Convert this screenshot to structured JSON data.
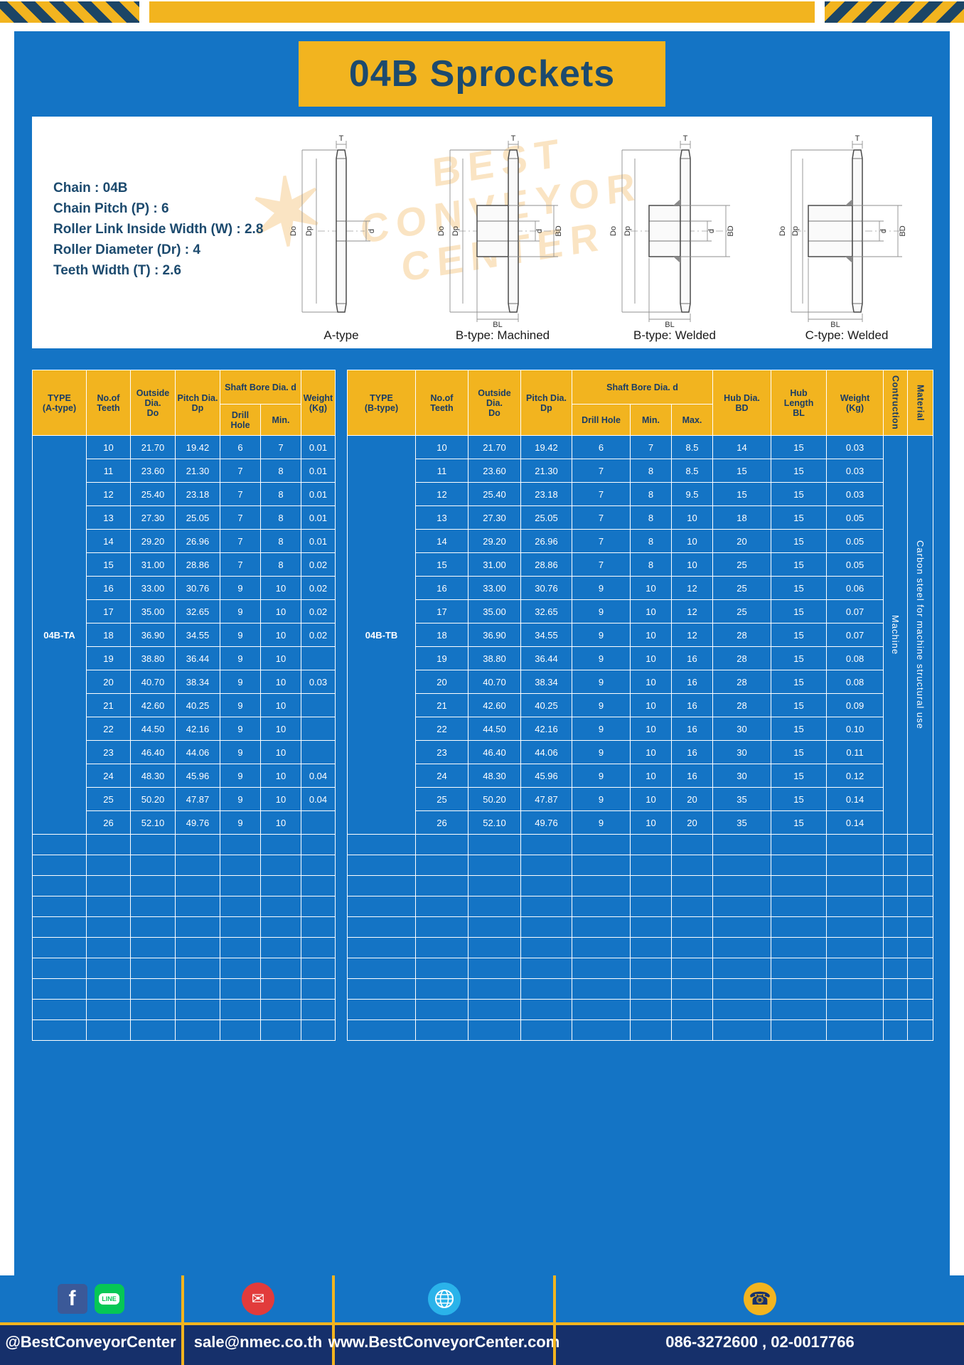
{
  "page": {
    "title": "04B Sprockets"
  },
  "colors": {
    "panel_blue": "#1474c5",
    "gold": "#f2b41f",
    "navy_text": "#1c4a6e",
    "header_text": "#1a3c64",
    "footer_navy": "#16306b",
    "hazard_dark": "#1c4566",
    "facebook_blue": "#3b5998",
    "line_green": "#06c755",
    "mail_red": "#e23b3b",
    "globe_blue": "#2ab3ea"
  },
  "specs": [
    "Chain : 04B",
    "Chain Pitch (P) : 6",
    "Roller Link Inside Width (W) : 2.8",
    "Roller Diameter (Dr) : 4",
    "Teeth Width (T) : 2.6"
  ],
  "diagram": {
    "watermark": [
      "BEST",
      "CONVEYOR",
      "CENTER"
    ],
    "watermark_star": "✶",
    "captions": [
      "A-type",
      "B-type: Machined",
      "B-type: Welded",
      "C-type: Welded"
    ],
    "labels": {
      "t": "T",
      "do": "Do",
      "dp": "Dp",
      "d": "d",
      "bd": "BD",
      "bl": "BL"
    }
  },
  "table_a": {
    "type_label": "04B-TA",
    "empty_rows": 10,
    "headers": {
      "type": "TYPE\n(A-type)",
      "teeth": "No.of\nTeeth",
      "outside": "Outside\nDia.\nDo",
      "pitch": "Pitch Dia.\nDp",
      "shaft": "Shaft Bore Dia. d",
      "drill": "Drill Hole",
      "min": "Min.",
      "weight": "Weight\n(Kg)"
    },
    "rows": [
      {
        "t": "10",
        "do": "21.70",
        "dp": "19.42",
        "dh": "6",
        "mn": "7",
        "w": "0.01"
      },
      {
        "t": "11",
        "do": "23.60",
        "dp": "21.30",
        "dh": "7",
        "mn": "8",
        "w": "0.01"
      },
      {
        "t": "12",
        "do": "25.40",
        "dp": "23.18",
        "dh": "7",
        "mn": "8",
        "w": "0.01"
      },
      {
        "t": "13",
        "do": "27.30",
        "dp": "25.05",
        "dh": "7",
        "mn": "8",
        "w": "0.01"
      },
      {
        "t": "14",
        "do": "29.20",
        "dp": "26.96",
        "dh": "7",
        "mn": "8",
        "w": "0.01"
      },
      {
        "t": "15",
        "do": "31.00",
        "dp": "28.86",
        "dh": "7",
        "mn": "8",
        "w": "0.02"
      },
      {
        "t": "16",
        "do": "33.00",
        "dp": "30.76",
        "dh": "9",
        "mn": "10",
        "w": "0.02"
      },
      {
        "t": "17",
        "do": "35.00",
        "dp": "32.65",
        "dh": "9",
        "mn": "10",
        "w": "0.02"
      },
      {
        "t": "18",
        "do": "36.90",
        "dp": "34.55",
        "dh": "9",
        "mn": "10",
        "w": "0.02"
      },
      {
        "t": "19",
        "do": "38.80",
        "dp": "36.44",
        "dh": "9",
        "mn": "10",
        "w": ""
      },
      {
        "t": "20",
        "do": "40.70",
        "dp": "38.34",
        "dh": "9",
        "mn": "10",
        "w": "0.03"
      },
      {
        "t": "21",
        "do": "42.60",
        "dp": "40.25",
        "dh": "9",
        "mn": "10",
        "w": ""
      },
      {
        "t": "22",
        "do": "44.50",
        "dp": "42.16",
        "dh": "9",
        "mn": "10",
        "w": ""
      },
      {
        "t": "23",
        "do": "46.40",
        "dp": "44.06",
        "dh": "9",
        "mn": "10",
        "w": ""
      },
      {
        "t": "24",
        "do": "48.30",
        "dp": "45.96",
        "dh": "9",
        "mn": "10",
        "w": "0.04"
      },
      {
        "t": "25",
        "do": "50.20",
        "dp": "47.87",
        "dh": "9",
        "mn": "10",
        "w": "0.04"
      },
      {
        "t": "26",
        "do": "52.10",
        "dp": "49.76",
        "dh": "9",
        "mn": "10",
        "w": ""
      }
    ]
  },
  "table_b": {
    "type_label": "04B-TB",
    "empty_rows": 10,
    "headers": {
      "type": "TYPE\n(B-type)",
      "teeth": "No.of\nTeeth",
      "outside": "Outside\nDia.\nDo",
      "pitch": "Pitch Dia.\nDp",
      "shaft": "Shaft Bore Dia. d",
      "drill": "Drill Hole",
      "min": "Min.",
      "max": "Max.",
      "hub_dia": "Hub Dia.\nBD",
      "hub_len": "Hub\nLength\nBL",
      "weight": "Weight\n(Kg)",
      "construction": "Contruction",
      "material": "Material"
    },
    "side": {
      "construction": "Machine",
      "material": "Carbon steel for machine structural use"
    },
    "rows": [
      {
        "t": "10",
        "do": "21.70",
        "dp": "19.42",
        "dh": "6",
        "mn": "7",
        "mx": "8.5",
        "bd": "14",
        "bl": "15",
        "w": "0.03"
      },
      {
        "t": "11",
        "do": "23.60",
        "dp": "21.30",
        "dh": "7",
        "mn": "8",
        "mx": "8.5",
        "bd": "15",
        "bl": "15",
        "w": "0.03"
      },
      {
        "t": "12",
        "do": "25.40",
        "dp": "23.18",
        "dh": "7",
        "mn": "8",
        "mx": "9.5",
        "bd": "15",
        "bl": "15",
        "w": "0.03"
      },
      {
        "t": "13",
        "do": "27.30",
        "dp": "25.05",
        "dh": "7",
        "mn": "8",
        "mx": "10",
        "bd": "18",
        "bl": "15",
        "w": "0.05"
      },
      {
        "t": "14",
        "do": "29.20",
        "dp": "26.96",
        "dh": "7",
        "mn": "8",
        "mx": "10",
        "bd": "20",
        "bl": "15",
        "w": "0.05"
      },
      {
        "t": "15",
        "do": "31.00",
        "dp": "28.86",
        "dh": "7",
        "mn": "8",
        "mx": "10",
        "bd": "25",
        "bl": "15",
        "w": "0.05"
      },
      {
        "t": "16",
        "do": "33.00",
        "dp": "30.76",
        "dh": "9",
        "mn": "10",
        "mx": "12",
        "bd": "25",
        "bl": "15",
        "w": "0.06"
      },
      {
        "t": "17",
        "do": "35.00",
        "dp": "32.65",
        "dh": "9",
        "mn": "10",
        "mx": "12",
        "bd": "25",
        "bl": "15",
        "w": "0.07"
      },
      {
        "t": "18",
        "do": "36.90",
        "dp": "34.55",
        "dh": "9",
        "mn": "10",
        "mx": "12",
        "bd": "28",
        "bl": "15",
        "w": "0.07"
      },
      {
        "t": "19",
        "do": "38.80",
        "dp": "36.44",
        "dh": "9",
        "mn": "10",
        "mx": "16",
        "bd": "28",
        "bl": "15",
        "w": "0.08"
      },
      {
        "t": "20",
        "do": "40.70",
        "dp": "38.34",
        "dh": "9",
        "mn": "10",
        "mx": "16",
        "bd": "28",
        "bl": "15",
        "w": "0.08"
      },
      {
        "t": "21",
        "do": "42.60",
        "dp": "40.25",
        "dh": "9",
        "mn": "10",
        "mx": "16",
        "bd": "28",
        "bl": "15",
        "w": "0.09"
      },
      {
        "t": "22",
        "do": "44.50",
        "dp": "42.16",
        "dh": "9",
        "mn": "10",
        "mx": "16",
        "bd": "30",
        "bl": "15",
        "w": "0.10"
      },
      {
        "t": "23",
        "do": "46.40",
        "dp": "44.06",
        "dh": "9",
        "mn": "10",
        "mx": "16",
        "bd": "30",
        "bl": "15",
        "w": "0.11"
      },
      {
        "t": "24",
        "do": "48.30",
        "dp": "45.96",
        "dh": "9",
        "mn": "10",
        "mx": "16",
        "bd": "30",
        "bl": "15",
        "w": "0.12"
      },
      {
        "t": "25",
        "do": "50.20",
        "dp": "47.87",
        "dh": "9",
        "mn": "10",
        "mx": "20",
        "bd": "35",
        "bl": "15",
        "w": "0.14"
      },
      {
        "t": "26",
        "do": "52.10",
        "dp": "49.76",
        "dh": "9",
        "mn": "10",
        "mx": "20",
        "bd": "35",
        "bl": "15",
        "w": "0.14"
      }
    ]
  },
  "footer": {
    "sections": [
      {
        "text": "@BestConveyorCenter"
      },
      {
        "text": "sale@nmec.co.th"
      },
      {
        "text": "www.BestConveyorCenter.com"
      },
      {
        "text": "086-3272600 , 02-0017766"
      }
    ],
    "icons": {
      "facebook_glyph": "f",
      "line_label": "LINE",
      "mail_glyph": "✉",
      "phone_glyph": "☎"
    }
  }
}
